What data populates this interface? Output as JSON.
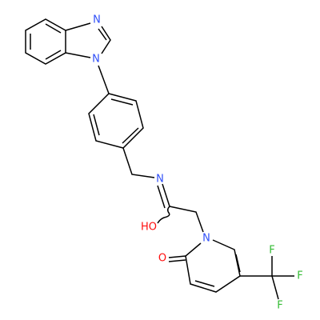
{
  "atoms": [
    {
      "label": "N"
    },
    {
      "label": "N"
    },
    {
      "label": "N"
    },
    {
      "label": "HO"
    },
    {
      "label": "N"
    },
    {
      "label": "O"
    },
    {
      "label": "F"
    },
    {
      "label": "F"
    },
    {
      "label": "F"
    }
  ]
}
